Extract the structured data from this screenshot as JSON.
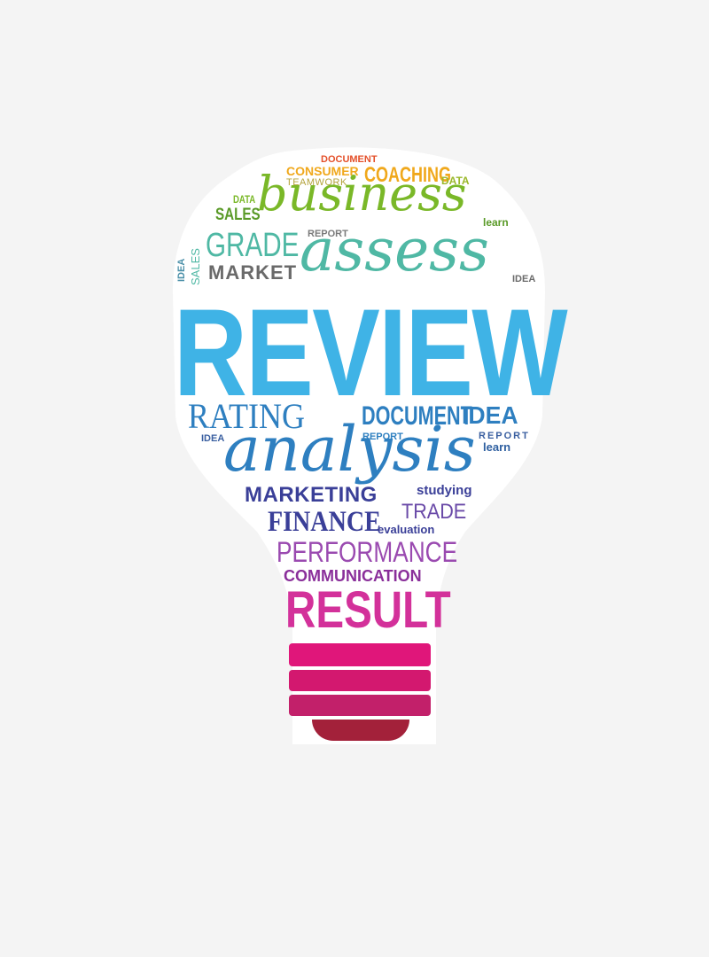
{
  "colors": {
    "orange": "#e8842a",
    "yellow": "#f0a81c",
    "green": "#7ab828",
    "teal": "#4fb8a4",
    "grey": "#8a8a8a",
    "sky": "#3fb3e6",
    "blue": "#2e7fc0",
    "navy": "#3a3f98",
    "indigo": "#4a3a98",
    "violet": "#9a4ab0",
    "purple": "#8a2f9a",
    "magenta": "#d3319a",
    "pink": "#e0167a",
    "maroon": "#a3213a",
    "white": "#ffffff"
  },
  "words": {
    "document_top": "DOCUMENT",
    "consumer": "CONSUMER",
    "teamwork": "TEAMWORK",
    "coaching": "COACHING",
    "data_right": "DATA",
    "data_left": "DATA",
    "sales": "SALES",
    "business": "business",
    "learn_top": "learn",
    "grade": "GRADE",
    "report_top": "REPORT",
    "idea_vertical": "IDEA",
    "sales_vertical": "SALES",
    "market": "MARKET",
    "assess": "assess",
    "idea_right": "IDEA",
    "review": "REVIEW",
    "rating": "RATING",
    "document_mid": "DOCUMENT",
    "idea_mid": "IDEA",
    "idea_left_small": "IDEA",
    "report_left": "REPORT",
    "report_right": "REPORT",
    "analysis": "analysis",
    "learn_mid": "learn",
    "marketing": "MARKETING",
    "studying": "studying",
    "finance": "FINANCE",
    "trade": "TRADE",
    "evaluation": "evaluation",
    "performance": "PERFORMANCE",
    "communication": "COMMUNICATION",
    "result": "RESULT"
  }
}
